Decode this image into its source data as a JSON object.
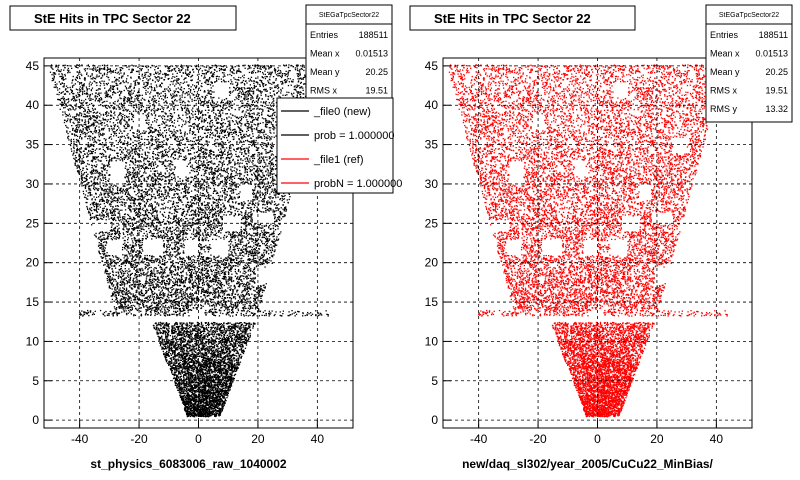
{
  "chart_data": [
    {
      "type": "scatter",
      "title": "StE Hits in TPC Sector 22",
      "xlabel": "st_physics_6083006_raw_1040002",
      "ylabel": "",
      "xlim": [
        -52,
        52
      ],
      "ylim": [
        -1,
        46
      ],
      "xticks": [
        -40,
        -20,
        0,
        20,
        40
      ],
      "yticks": [
        0,
        5,
        10,
        15,
        20,
        25,
        30,
        35,
        40,
        45
      ],
      "grid": true,
      "color": "#000000",
      "stats": {
        "name": "StEGaTpcSector22",
        "rows": [
          {
            "label": "Entries",
            "value": "188511"
          },
          {
            "label": "Mean x",
            "value": "0.01513"
          },
          {
            "label": "Mean y",
            "value": "20.25"
          },
          {
            "label": "RMS x",
            "value": "19.51"
          }
        ]
      },
      "legend": {
        "placement": "top-right",
        "entries": [
          {
            "label": "_file0 (new)",
            "color": "#000000"
          },
          {
            "label": "prob = 1.000000",
            "color": "#000000"
          },
          {
            "label": "_file1 (ref)",
            "color": "#ff0000"
          },
          {
            "label": "probN = 1.000000",
            "color": "#ff0000"
          }
        ]
      }
    },
    {
      "type": "scatter",
      "title": "StE Hits in TPC Sector 22",
      "xlabel": "new/daq_sl302/year_2005/CuCu22_MinBias/",
      "ylabel": "",
      "xlim": [
        -52,
        52
      ],
      "ylim": [
        -1,
        46
      ],
      "xticks": [
        -40,
        -20,
        0,
        20,
        40
      ],
      "yticks": [
        0,
        5,
        10,
        15,
        20,
        25,
        30,
        35,
        40,
        45
      ],
      "grid": true,
      "color": "#ff0000",
      "stats": {
        "name": "StEGaTpcSector22",
        "rows": [
          {
            "label": "Entries",
            "value": "188511"
          },
          {
            "label": "Mean x",
            "value": "0.01513"
          },
          {
            "label": "Mean y",
            "value": "20.25"
          },
          {
            "label": "RMS x",
            "value": "19.51"
          },
          {
            "label": "RMS y",
            "value": "13.32"
          }
        ]
      }
    }
  ]
}
